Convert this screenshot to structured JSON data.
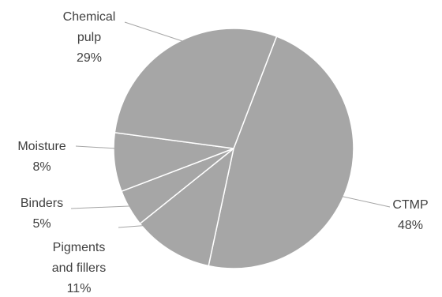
{
  "chart_data": {
    "type": "pie",
    "slices": [
      {
        "name": "CTMP",
        "value": 48,
        "label_lines": [
          "CTMP"
        ],
        "value_label": "48%"
      },
      {
        "name": "Pigments and fillers",
        "value": 11,
        "label_lines": [
          "Pigments",
          "and fillers"
        ],
        "value_label": "11%"
      },
      {
        "name": "Binders",
        "value": 5,
        "label_lines": [
          "Binders"
        ],
        "value_label": "5%"
      },
      {
        "name": "Moisture",
        "value": 8,
        "label_lines": [
          "Moisture"
        ],
        "value_label": "8%"
      },
      {
        "name": "Chemical pulp",
        "value": 29,
        "label_lines": [
          "Chemical",
          "pulp"
        ],
        "value_label": "29%"
      }
    ],
    "colors": {
      "slice": "#a6a6a6",
      "border": "#ffffff",
      "text": "#404040",
      "leader": "#a6a6a6"
    },
    "legend": "none",
    "data_labels": "outside with leader lines"
  }
}
